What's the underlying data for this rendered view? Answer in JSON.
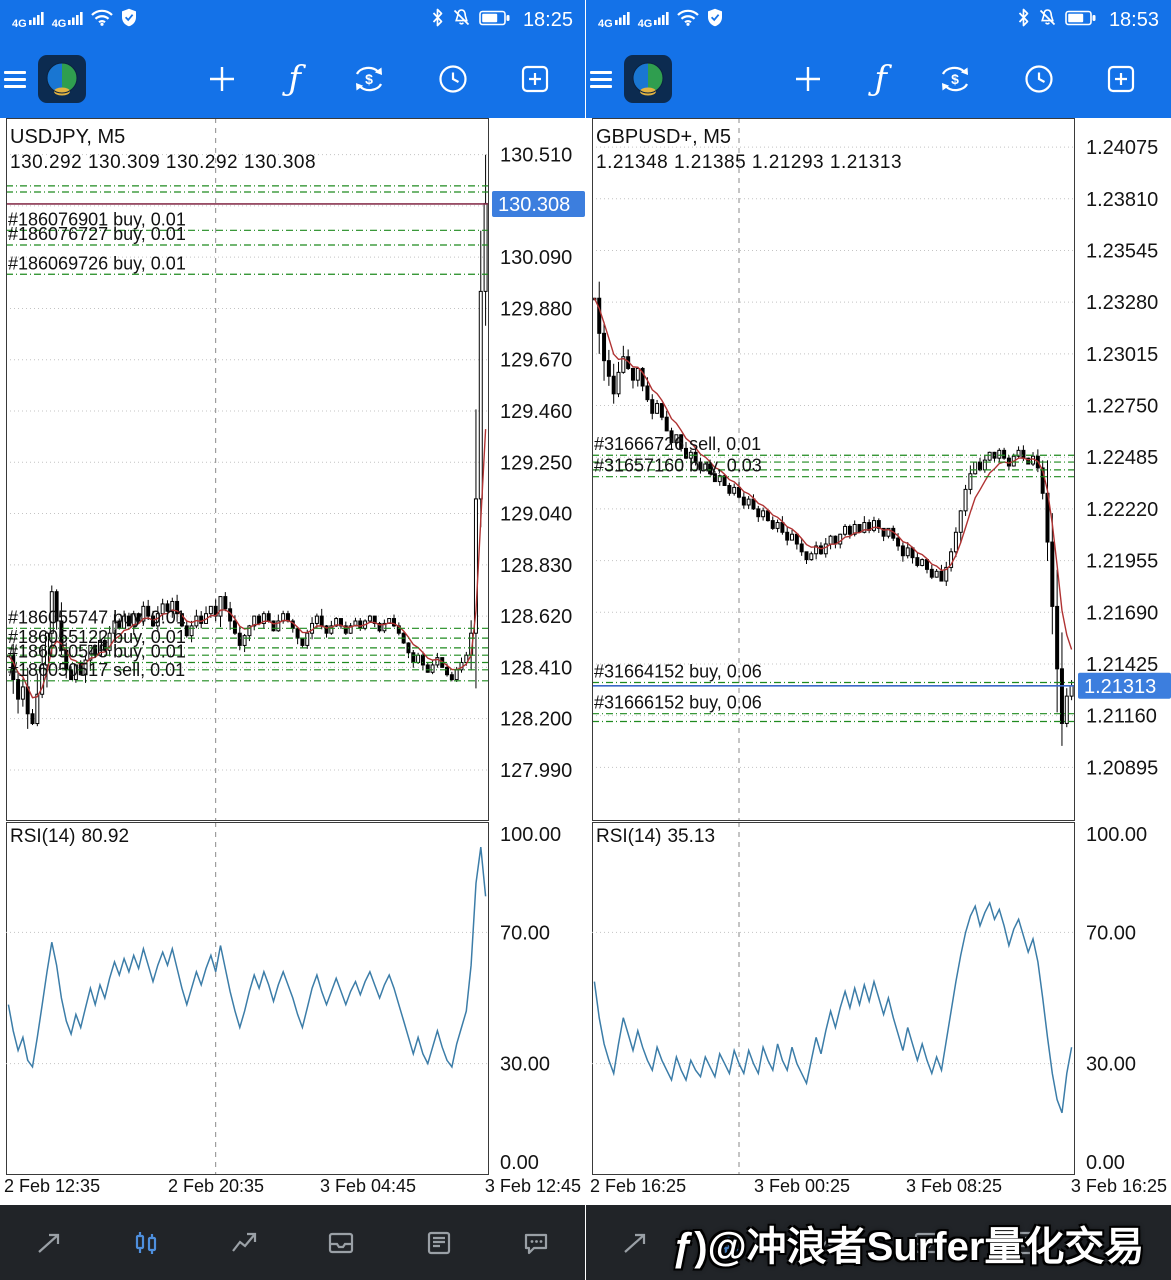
{
  "status": {
    "network": "4G",
    "left_time": "18:25",
    "right_time": "18:53"
  },
  "watermark": "ƒ)@冲浪者Surfer量化交易",
  "colors": {
    "toolbar_blue": "#1472e8",
    "candle": "#000000",
    "ma": "#b03333",
    "rsi_line": "#3c7da8",
    "order_line": "#1f8a1f",
    "tag_bg": "#3c7ede",
    "grid": "#c4c4c4",
    "nav_active": "#4e8fdd"
  },
  "chart_data": [
    {
      "type": "candlestick",
      "symbol": "USDJPY, M5",
      "ohlc": "130.292 130.309 130.292 130.308",
      "last_price": 130.308,
      "last_tag": "130.308",
      "last_line_color": "#8a3550",
      "ylim": [
        127.785,
        130.66
      ],
      "price_ticks": [
        "130.510",
        "130.300",
        "130.090",
        "129.880",
        "129.670",
        "129.460",
        "129.250",
        "129.040",
        "128.830",
        "128.620",
        "128.410",
        "128.200",
        "127.990"
      ],
      "x_labels": [
        "2 Feb 12:35",
        "2 Feb 20:35",
        "3 Feb 04:45",
        "3 Feb 12:45"
      ],
      "vline_frac": 0.435,
      "orders": [
        {
          "label": "#186076901 buy, 0.01",
          "price": 130.2
        },
        {
          "label": "#186076727 buy, 0.01",
          "price": 130.14
        },
        {
          "label": "#186069726 buy, 0.01",
          "price": 130.02
        },
        {
          "label": "#186055747 buy, 0.01",
          "price": 128.57
        },
        {
          "label": "#186055122 buy, 0.01",
          "price": 128.49
        },
        {
          "label": "#186050545 buy, 0.01",
          "price": 128.43
        },
        {
          "label": "#186050517 sell, 0.01",
          "price": 128.355
        }
      ],
      "extra_lines": [
        130.382,
        130.357,
        128.53,
        128.46,
        128.4
      ],
      "closes": [
        128.46,
        128.36,
        128.28,
        128.33,
        128.22,
        128.18,
        128.3,
        128.42,
        128.55,
        128.72,
        128.6,
        128.48,
        128.4,
        128.36,
        128.42,
        128.38,
        128.44,
        128.5,
        128.46,
        128.52,
        128.48,
        128.55,
        128.6,
        128.57,
        128.62,
        128.58,
        128.63,
        128.6,
        128.66,
        128.62,
        128.58,
        128.63,
        128.67,
        128.64,
        128.68,
        128.63,
        128.58,
        128.54,
        128.58,
        128.62,
        128.59,
        128.63,
        128.66,
        128.62,
        128.7,
        128.65,
        128.6,
        128.55,
        128.5,
        128.54,
        128.58,
        128.62,
        128.59,
        128.63,
        128.6,
        128.56,
        128.6,
        128.63,
        128.6,
        128.57,
        128.53,
        128.5,
        128.55,
        128.59,
        128.62,
        128.58,
        128.55,
        128.58,
        128.61,
        128.58,
        128.55,
        128.58,
        128.6,
        128.57,
        128.6,
        128.62,
        128.59,
        128.56,
        128.59,
        128.61,
        128.58,
        128.55,
        128.51,
        128.47,
        128.43,
        128.46,
        128.42,
        128.39,
        128.42,
        128.45,
        128.41,
        128.38,
        128.36,
        128.4,
        128.43,
        128.46,
        128.55,
        129.1,
        129.95,
        130.31
      ],
      "rsi": {
        "title": "RSI(14)",
        "value": "80.92",
        "ticks": [
          "100.00",
          "70.00",
          "30.00",
          "0.00"
        ],
        "tick_values": [
          100,
          70,
          30,
          0
        ],
        "values": [
          48,
          40,
          34,
          38,
          31,
          29,
          38,
          48,
          58,
          67,
          60,
          50,
          43,
          39,
          45,
          41,
          47,
          53,
          48,
          54,
          50,
          56,
          61,
          57,
          62,
          58,
          63,
          59,
          65,
          60,
          55,
          60,
          64,
          60,
          65,
          59,
          53,
          48,
          53,
          58,
          54,
          59,
          63,
          58,
          66,
          59,
          52,
          46,
          41,
          46,
          52,
          57,
          53,
          58,
          54,
          49,
          54,
          58,
          54,
          50,
          45,
          41,
          47,
          53,
          57,
          52,
          48,
          52,
          56,
          52,
          48,
          52,
          55,
          51,
          55,
          58,
          54,
          50,
          54,
          57,
          53,
          48,
          43,
          38,
          33,
          38,
          33,
          30,
          35,
          40,
          35,
          31,
          29,
          36,
          41,
          46,
          60,
          85,
          96,
          81
        ]
      }
    },
    {
      "type": "candlestick",
      "symbol": "GBPUSD+, M5",
      "ohlc": "1.21348 1.21385 1.21293 1.21313",
      "last_price": 1.21313,
      "last_tag": "1.21313",
      "last_line_color": "#3a67c8",
      "ylim": [
        1.20625,
        1.24224
      ],
      "price_ticks": [
        "1.24075",
        "1.23810",
        "1.23545",
        "1.23280",
        "1.23015",
        "1.22750",
        "1.22485",
        "1.22220",
        "1.21955",
        "1.21690",
        "1.21425",
        "1.21160",
        "1.20895"
      ],
      "x_labels": [
        "2 Feb 16:25",
        "3 Feb 00:25",
        "3 Feb 08:25",
        "3 Feb 16:25"
      ],
      "vline_frac": 0.305,
      "orders": [
        {
          "label": "#31666726 sell, 0.01",
          "price": 1.22495
        },
        {
          "label": "#31657160 buy, 0.03",
          "price": 1.22385
        },
        {
          "label": "#31664152 buy, 0.06",
          "price": 1.2133
        },
        {
          "label": "#31666152 buy, 0.06",
          "price": 1.2117
        }
      ],
      "extra_lines": [
        1.2246,
        1.2242,
        1.2113
      ],
      "closes": [
        1.233,
        1.2312,
        1.2298,
        1.229,
        1.2281,
        1.2292,
        1.23,
        1.2294,
        1.2288,
        1.2294,
        1.2285,
        1.2278,
        1.2271,
        1.2276,
        1.2269,
        1.2262,
        1.2256,
        1.226,
        1.2253,
        1.2248,
        1.2251,
        1.2246,
        1.2242,
        1.2245,
        1.224,
        1.2236,
        1.2239,
        1.2234,
        1.223,
        1.2233,
        1.2228,
        1.2224,
        1.2227,
        1.2222,
        1.2218,
        1.2221,
        1.2216,
        1.2212,
        1.2215,
        1.221,
        1.2206,
        1.2209,
        1.2204,
        1.22,
        1.2196,
        1.2199,
        1.2203,
        1.2199,
        1.2204,
        1.2208,
        1.2204,
        1.2209,
        1.2213,
        1.2209,
        1.2214,
        1.221,
        1.2215,
        1.2211,
        1.2216,
        1.2212,
        1.2208,
        1.2212,
        1.2207,
        1.2203,
        1.2198,
        1.2202,
        1.2197,
        1.2193,
        1.2196,
        1.2191,
        1.2187,
        1.219,
        1.2185,
        1.2192,
        1.22,
        1.221,
        1.2221,
        1.2232,
        1.224,
        1.2246,
        1.2242,
        1.2247,
        1.2251,
        1.2248,
        1.2252,
        1.2248,
        1.2244,
        1.2249,
        1.2252,
        1.2248,
        1.2245,
        1.2249,
        1.2243,
        1.223,
        1.2205,
        1.2172,
        1.214,
        1.2112,
        1.2126,
        1.21313
      ],
      "rsi": {
        "title": "RSI(14)",
        "value": "35.13",
        "ticks": [
          "100.00",
          "70.00",
          "30.00",
          "0.00"
        ],
        "tick_values": [
          100,
          70,
          30,
          0
        ],
        "values": [
          55,
          44,
          36,
          31,
          27,
          36,
          44,
          39,
          34,
          40,
          35,
          31,
          28,
          35,
          31,
          28,
          25,
          32,
          28,
          25,
          31,
          28,
          26,
          32,
          29,
          26,
          33,
          30,
          27,
          34,
          30,
          27,
          34,
          30,
          27,
          35,
          31,
          28,
          36,
          31,
          28,
          35,
          30,
          27,
          24,
          31,
          38,
          33,
          40,
          46,
          41,
          47,
          52,
          47,
          53,
          48,
          54,
          49,
          55,
          50,
          45,
          50,
          44,
          39,
          34,
          41,
          36,
          31,
          36,
          31,
          27,
          32,
          28,
          37,
          46,
          55,
          63,
          70,
          75,
          78,
          72,
          76,
          79,
          74,
          77,
          72,
          66,
          71,
          74,
          69,
          64,
          68,
          61,
          50,
          38,
          27,
          19,
          15,
          27,
          35
        ]
      }
    }
  ]
}
